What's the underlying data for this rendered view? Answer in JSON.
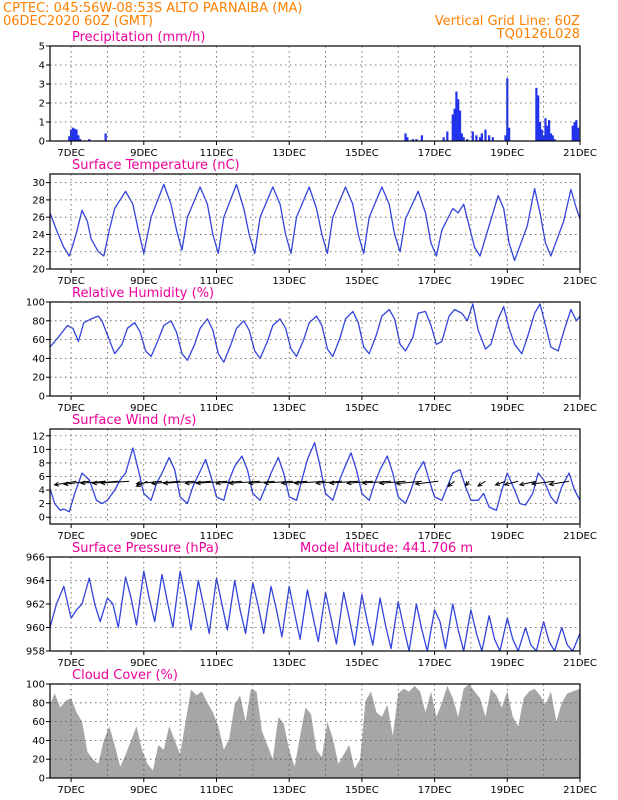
{
  "header": {
    "station_line": "CPTEC:  045:56W-08:53S  ALTO PARNAIBA (MA)",
    "date_line": "06DEC2020 60Z (GMT)",
    "grid_line": "Vertical Grid Line: 60Z",
    "code": "TQ0126L028"
  },
  "colors": {
    "header": "#ff8000",
    "panel_title": "#ee0099",
    "series": "#3344dd",
    "bars": "#2233ee",
    "cloud": "#a6a6a6",
    "arrows": "#000000"
  },
  "x_axis": {
    "range_days": [
      6.42,
      21.0
    ],
    "ticks": [
      {
        "day": 7,
        "label": "7DEC"
      },
      {
        "day": 9,
        "label": "9DEC"
      },
      {
        "day": 11,
        "label": "11DEC"
      },
      {
        "day": 13,
        "label": "13DEC"
      },
      {
        "day": 15,
        "label": "15DEC"
      },
      {
        "day": 17,
        "label": "17DEC"
      },
      {
        "day": 19,
        "label": "19DEC"
      },
      {
        "day": 21,
        "label": "21DEC"
      }
    ],
    "vertical_grid": "daily"
  },
  "chart_data": [
    {
      "id": "precip",
      "type": "bar",
      "title": "Precipitation (mm/h)",
      "ylim": [
        0,
        5
      ],
      "yticks": [
        0,
        1,
        2,
        3,
        4,
        5
      ],
      "grid": true,
      "x": [
        6.95,
        7.0,
        7.05,
        7.1,
        7.15,
        7.2,
        7.25,
        7.5,
        7.95,
        16.2,
        16.25,
        16.4,
        16.5,
        16.65,
        17.25,
        17.35,
        17.5,
        17.55,
        17.6,
        17.65,
        17.7,
        17.75,
        17.8,
        17.9,
        18.05,
        18.15,
        18.25,
        18.3,
        18.4,
        18.5,
        18.6,
        18.95,
        19.0,
        19.05,
        19.8,
        19.85,
        19.9,
        19.95,
        20.0,
        20.05,
        20.1,
        20.15,
        20.2,
        20.25,
        20.3,
        20.8,
        20.85,
        20.9,
        20.95
      ],
      "values": [
        0.25,
        0.6,
        0.7,
        0.65,
        0.6,
        0.3,
        0.1,
        0.1,
        0.4,
        0.4,
        0.2,
        0.1,
        0.1,
        0.3,
        0.2,
        0.5,
        1.4,
        1.7,
        2.6,
        2.2,
        1.6,
        0.4,
        0.2,
        0.1,
        0.5,
        0.3,
        0.2,
        0.4,
        0.6,
        0.3,
        0.2,
        0.3,
        3.3,
        0.7,
        2.8,
        2.4,
        1.0,
        0.6,
        0.3,
        1.2,
        0.8,
        1.1,
        0.4,
        0.3,
        0.1,
        0.8,
        1.0,
        1.1,
        0.7
      ]
    },
    {
      "id": "temperature",
      "type": "line",
      "title": "Surface Temperature (nC)",
      "ylim": [
        20,
        31
      ],
      "yticks": [
        20,
        22,
        24,
        26,
        28,
        30
      ],
      "grid": true,
      "x": [
        6.42,
        6.6,
        6.8,
        6.95,
        7.05,
        7.15,
        7.3,
        7.45,
        7.55,
        7.75,
        7.9,
        8.05,
        8.2,
        8.5,
        8.7,
        8.85,
        9.0,
        9.2,
        9.55,
        9.75,
        9.9,
        10.05,
        10.2,
        10.55,
        10.75,
        10.9,
        11.05,
        11.2,
        11.55,
        11.75,
        11.9,
        12.05,
        12.2,
        12.55,
        12.75,
        12.9,
        13.05,
        13.2,
        13.55,
        13.75,
        13.9,
        14.05,
        14.2,
        14.55,
        14.75,
        14.9,
        15.05,
        15.2,
        15.55,
        15.75,
        15.9,
        16.05,
        16.2,
        16.55,
        16.75,
        16.9,
        17.05,
        17.2,
        17.5,
        17.65,
        17.8,
        17.95,
        18.1,
        18.25,
        18.5,
        18.75,
        18.9,
        19.05,
        19.2,
        19.55,
        19.75,
        19.9,
        20.05,
        20.2,
        20.55,
        20.75,
        20.9,
        21.0
      ],
      "values": [
        26.5,
        24.5,
        22.5,
        21.5,
        22.8,
        24.2,
        26.8,
        25.5,
        23.5,
        22.0,
        21.5,
        24.5,
        27.0,
        29.0,
        27.5,
        24.5,
        21.8,
        26.0,
        29.8,
        27.5,
        24.5,
        22.2,
        26.0,
        29.5,
        27.5,
        24.0,
        21.8,
        26.0,
        29.8,
        27.0,
        24.0,
        21.8,
        26.0,
        29.5,
        27.5,
        24.0,
        21.8,
        26.0,
        29.5,
        27.0,
        24.0,
        21.8,
        26.0,
        29.5,
        27.5,
        24.0,
        21.8,
        26.0,
        29.5,
        27.5,
        24.0,
        22.0,
        25.8,
        29.0,
        26.5,
        23.0,
        21.5,
        24.5,
        27.0,
        26.5,
        27.5,
        25.0,
        22.5,
        21.5,
        25.0,
        28.5,
        27.0,
        23.0,
        21.0,
        25.0,
        29.3,
        26.5,
        23.0,
        21.5,
        25.5,
        29.2,
        27.0,
        25.8
      ]
    },
    {
      "id": "humidity",
      "type": "line",
      "title": "Relative Humidity (%)",
      "ylim": [
        0,
        100
      ],
      "yticks": [
        0,
        20,
        40,
        60,
        80,
        100
      ],
      "grid": true,
      "x": [
        6.42,
        6.7,
        6.9,
        7.05,
        7.2,
        7.35,
        7.55,
        7.75,
        7.85,
        8.0,
        8.2,
        8.4,
        8.55,
        8.75,
        8.9,
        9.05,
        9.2,
        9.4,
        9.55,
        9.75,
        9.9,
        10.05,
        10.2,
        10.4,
        10.55,
        10.75,
        10.9,
        11.05,
        11.2,
        11.4,
        11.55,
        11.75,
        11.9,
        12.05,
        12.2,
        12.4,
        12.55,
        12.75,
        12.9,
        13.05,
        13.2,
        13.4,
        13.55,
        13.75,
        13.9,
        14.05,
        14.2,
        14.4,
        14.55,
        14.75,
        14.9,
        15.05,
        15.2,
        15.4,
        15.55,
        15.75,
        15.9,
        16.05,
        16.2,
        16.4,
        16.55,
        16.75,
        16.9,
        17.05,
        17.2,
        17.4,
        17.55,
        17.75,
        17.9,
        18.05,
        18.2,
        18.4,
        18.55,
        18.75,
        18.9,
        19.05,
        19.2,
        19.4,
        19.55,
        19.75,
        19.9,
        20.05,
        20.2,
        20.4,
        20.55,
        20.75,
        20.9,
        21.0
      ],
      "values": [
        52,
        65,
        75,
        72,
        58,
        78,
        82,
        85,
        80,
        65,
        45,
        55,
        72,
        78,
        68,
        48,
        42,
        60,
        75,
        80,
        68,
        45,
        38,
        55,
        72,
        82,
        70,
        45,
        36,
        55,
        72,
        80,
        70,
        48,
        40,
        58,
        75,
        82,
        72,
        50,
        42,
        60,
        78,
        85,
        75,
        50,
        42,
        62,
        82,
        90,
        78,
        52,
        45,
        65,
        85,
        92,
        82,
        55,
        48,
        62,
        88,
        90,
        75,
        55,
        58,
        85,
        92,
        88,
        80,
        98,
        70,
        50,
        55,
        82,
        95,
        72,
        55,
        45,
        62,
        88,
        98,
        75,
        52,
        48,
        68,
        92,
        80,
        85
      ]
    },
    {
      "id": "wind",
      "type": "line",
      "title": "Surface Wind (m/s)",
      "ylim": [
        -1,
        13
      ],
      "yticks": [
        0,
        2,
        4,
        6,
        8,
        10,
        12
      ],
      "grid": true,
      "x": [
        6.42,
        6.55,
        6.7,
        6.8,
        6.95,
        7.1,
        7.3,
        7.5,
        7.7,
        7.85,
        8.0,
        8.2,
        8.35,
        8.5,
        8.7,
        8.85,
        9.0,
        9.2,
        9.35,
        9.5,
        9.7,
        9.85,
        10.0,
        10.2,
        10.35,
        10.5,
        10.7,
        10.85,
        11.0,
        11.2,
        11.35,
        11.5,
        11.7,
        11.85,
        12.0,
        12.2,
        12.35,
        12.5,
        12.7,
        12.85,
        13.0,
        13.2,
        13.35,
        13.5,
        13.7,
        13.85,
        14.0,
        14.2,
        14.35,
        14.5,
        14.7,
        14.85,
        15.0,
        15.2,
        15.35,
        15.5,
        15.7,
        15.85,
        16.0,
        16.2,
        16.35,
        16.5,
        16.7,
        16.85,
        17.0,
        17.2,
        17.35,
        17.5,
        17.7,
        17.85,
        18.0,
        18.2,
        18.35,
        18.5,
        18.7,
        18.85,
        19.0,
        19.2,
        19.35,
        19.5,
        19.7,
        19.85,
        20.0,
        20.2,
        20.35,
        20.5,
        20.7,
        20.85,
        21.0
      ],
      "values": [
        4.2,
        2.0,
        1.0,
        1.2,
        0.8,
        3.5,
        6.5,
        5.5,
        2.5,
        2.0,
        2.5,
        4.0,
        5.5,
        6.5,
        10.2,
        7.0,
        3.5,
        2.5,
        5.0,
        6.5,
        8.8,
        7.0,
        3.0,
        2.0,
        4.5,
        6.2,
        8.5,
        6.0,
        3.0,
        2.5,
        5.5,
        7.5,
        9.0,
        7.0,
        3.5,
        2.5,
        4.5,
        6.5,
        8.8,
        6.5,
        3.0,
        2.5,
        5.5,
        8.5,
        11.0,
        7.5,
        3.5,
        2.5,
        5.0,
        7.0,
        9.5,
        7.0,
        3.5,
        2.5,
        5.0,
        7.0,
        9.0,
        6.5,
        3.0,
        2.0,
        4.0,
        6.5,
        8.2,
        5.5,
        3.0,
        2.5,
        4.5,
        6.5,
        7.0,
        4.5,
        2.5,
        2.5,
        3.5,
        1.5,
        1.0,
        4.0,
        6.5,
        4.0,
        2.0,
        1.8,
        3.5,
        6.5,
        5.5,
        3.0,
        2.0,
        4.5,
        6.5,
        4.0,
        2.5
      ],
      "arrows": [
        {
          "day": 7.15,
          "speed": 4.5,
          "dir_deg": 160
        },
        {
          "day": 7.5,
          "speed": 5.0,
          "dir_deg": 165
        },
        {
          "day": 7.95,
          "speed": 4.8,
          "dir_deg": 170
        },
        {
          "day": 8.3,
          "speed": 5.0,
          "dir_deg": 170
        },
        {
          "day": 8.6,
          "speed": 5.5,
          "dir_deg": 172
        },
        {
          "day": 9.1,
          "speed": 3.0,
          "dir_deg": 135
        },
        {
          "day": 9.5,
          "speed": 5.0,
          "dir_deg": 168
        },
        {
          "day": 10.0,
          "speed": 5.5,
          "dir_deg": 170
        },
        {
          "day": 10.4,
          "speed": 6.0,
          "dir_deg": 172
        },
        {
          "day": 10.85,
          "speed": 5.0,
          "dir_deg": 170
        },
        {
          "day": 11.3,
          "speed": 6.0,
          "dir_deg": 172
        },
        {
          "day": 11.7,
          "speed": 5.0,
          "dir_deg": 170
        },
        {
          "day": 12.2,
          "speed": 6.0,
          "dir_deg": 172
        },
        {
          "day": 12.6,
          "speed": 5.0,
          "dir_deg": 170
        },
        {
          "day": 13.1,
          "speed": 5.5,
          "dir_deg": 172
        },
        {
          "day": 13.5,
          "speed": 5.0,
          "dir_deg": 170
        },
        {
          "day": 14.0,
          "speed": 6.0,
          "dir_deg": 172
        },
        {
          "day": 14.45,
          "speed": 5.0,
          "dir_deg": 170
        },
        {
          "day": 14.9,
          "speed": 5.5,
          "dir_deg": 172
        },
        {
          "day": 15.3,
          "speed": 5.0,
          "dir_deg": 170
        },
        {
          "day": 15.8,
          "speed": 5.5,
          "dir_deg": 172
        },
        {
          "day": 16.2,
          "speed": 5.0,
          "dir_deg": 170
        },
        {
          "day": 16.65,
          "speed": 5.0,
          "dir_deg": 168
        },
        {
          "day": 17.1,
          "speed": 4.5,
          "dir_deg": 165
        },
        {
          "day": 17.55,
          "speed": 2.5,
          "dir_deg": 120
        },
        {
          "day": 17.95,
          "speed": 2.0,
          "dir_deg": 110
        },
        {
          "day": 18.4,
          "speed": 2.5,
          "dir_deg": 125
        },
        {
          "day": 18.95,
          "speed": 2.5,
          "dir_deg": 140
        },
        {
          "day": 19.3,
          "speed": 3.0,
          "dir_deg": 150
        },
        {
          "day": 19.8,
          "speed": 3.5,
          "dir_deg": 155
        },
        {
          "day": 20.3,
          "speed": 4.5,
          "dir_deg": 165
        },
        {
          "day": 20.7,
          "speed": 4.0,
          "dir_deg": 160
        }
      ]
    },
    {
      "id": "pressure",
      "type": "line",
      "title": "Surface Pressure (hPa)",
      "subtitle": "Model Altitude: 441.706  m",
      "ylim": [
        958,
        966
      ],
      "yticks": [
        958,
        960,
        962,
        964,
        966
      ],
      "grid": true,
      "x": [
        6.42,
        6.6,
        6.8,
        7.0,
        7.15,
        7.3,
        7.5,
        7.65,
        7.8,
        8.0,
        8.15,
        8.3,
        8.5,
        8.65,
        8.8,
        9.0,
        9.15,
        9.3,
        9.5,
        9.65,
        9.8,
        10.0,
        10.15,
        10.3,
        10.5,
        10.65,
        10.8,
        11.0,
        11.15,
        11.3,
        11.5,
        11.65,
        11.8,
        12.0,
        12.15,
        12.3,
        12.5,
        12.65,
        12.8,
        13.0,
        13.15,
        13.3,
        13.5,
        13.65,
        13.8,
        14.0,
        14.15,
        14.3,
        14.5,
        14.65,
        14.8,
        15.0,
        15.15,
        15.3,
        15.5,
        15.65,
        15.8,
        16.0,
        16.15,
        16.3,
        16.5,
        16.65,
        16.8,
        17.0,
        17.15,
        17.3,
        17.5,
        17.65,
        17.8,
        18.0,
        18.15,
        18.3,
        18.5,
        18.65,
        18.8,
        19.0,
        19.15,
        19.3,
        19.5,
        19.65,
        19.8,
        20.0,
        20.15,
        20.3,
        20.5,
        20.65,
        20.8,
        21.0
      ],
      "values": [
        960.0,
        962.0,
        963.5,
        960.8,
        961.5,
        962.0,
        964.2,
        962.0,
        960.5,
        962.5,
        962.0,
        960.0,
        964.3,
        962.5,
        960.2,
        964.8,
        962.5,
        960.5,
        964.5,
        962.2,
        960.0,
        964.8,
        962.5,
        959.8,
        964.0,
        961.8,
        959.5,
        964.2,
        962.0,
        959.8,
        964.0,
        961.5,
        959.5,
        963.8,
        961.8,
        959.5,
        963.5,
        961.5,
        959.2,
        963.5,
        961.2,
        959.0,
        963.2,
        961.0,
        958.8,
        963.0,
        960.8,
        958.6,
        963.0,
        960.8,
        958.5,
        962.8,
        960.5,
        958.5,
        962.5,
        960.2,
        958.2,
        962.2,
        960.0,
        958.0,
        962.0,
        959.8,
        958.0,
        961.5,
        960.5,
        958.2,
        962.0,
        959.8,
        958.0,
        961.5,
        959.5,
        958.0,
        961.0,
        959.0,
        958.0,
        960.8,
        959.0,
        958.0,
        960.0,
        958.5,
        958.0,
        960.5,
        958.8,
        958.0,
        960.0,
        958.5,
        958.0,
        959.5
      ]
    },
    {
      "id": "cloud",
      "type": "area",
      "title": "Cloud Cover (%)",
      "ylim": [
        0,
        100
      ],
      "yticks": [
        0,
        20,
        40,
        60,
        80,
        100
      ],
      "grid": true,
      "x": [
        6.42,
        6.55,
        6.7,
        6.85,
        7.0,
        7.15,
        7.3,
        7.45,
        7.6,
        7.75,
        7.9,
        8.05,
        8.2,
        8.35,
        8.5,
        8.65,
        8.8,
        8.95,
        9.1,
        9.25,
        9.4,
        9.55,
        9.7,
        9.85,
        10.0,
        10.15,
        10.3,
        10.45,
        10.6,
        10.75,
        10.9,
        11.05,
        11.2,
        11.35,
        11.5,
        11.65,
        11.8,
        11.95,
        12.1,
        12.25,
        12.4,
        12.55,
        12.7,
        12.85,
        13.0,
        13.15,
        13.3,
        13.45,
        13.6,
        13.75,
        13.9,
        14.05,
        14.2,
        14.35,
        14.5,
        14.65,
        14.8,
        14.95,
        15.1,
        15.25,
        15.4,
        15.55,
        15.7,
        15.85,
        16.0,
        16.15,
        16.3,
        16.45,
        16.6,
        16.75,
        16.9,
        17.05,
        17.2,
        17.35,
        17.5,
        17.65,
        17.8,
        17.95,
        18.1,
        18.25,
        18.4,
        18.55,
        18.7,
        18.85,
        19.0,
        19.15,
        19.3,
        19.45,
        19.6,
        19.75,
        19.9,
        20.05,
        20.2,
        20.35,
        20.5,
        20.65,
        20.8,
        21.0
      ],
      "values": [
        78,
        90,
        75,
        82,
        85,
        70,
        60,
        28,
        20,
        15,
        40,
        55,
        35,
        12,
        25,
        40,
        55,
        30,
        15,
        8,
        35,
        30,
        55,
        40,
        25,
        60,
        94,
        88,
        92,
        80,
        70,
        55,
        30,
        42,
        78,
        88,
        60,
        95,
        92,
        50,
        35,
        20,
        65,
        58,
        30,
        12,
        45,
        75,
        68,
        30,
        22,
        60,
        42,
        15,
        25,
        35,
        10,
        20,
        82,
        92,
        70,
        65,
        78,
        45,
        90,
        95,
        92,
        98,
        92,
        70,
        92,
        65,
        80,
        98,
        85,
        65,
        95,
        100,
        92,
        85,
        65,
        95,
        88,
        75,
        92,
        65,
        55,
        85,
        92,
        95,
        88,
        78,
        92,
        60,
        80,
        90,
        92,
        95
      ]
    }
  ]
}
